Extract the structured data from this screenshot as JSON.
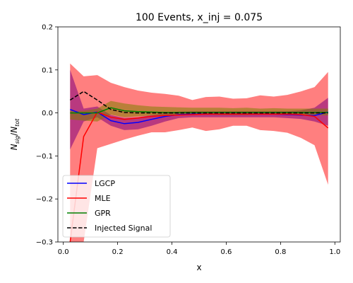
{
  "chart_data": {
    "type": "line",
    "title": "100 Events, x_inj = 0.075",
    "xlabel": "x",
    "ylabel_main": "N",
    "ylabel_num_sub": "sig",
    "ylabel_den_sub": "tot",
    "xlim": [
      -0.02,
      1.02
    ],
    "ylim": [
      -0.3,
      0.2
    ],
    "xticks": [
      0.0,
      0.2,
      0.4,
      0.6,
      0.8,
      1.0
    ],
    "xtick_labels": [
      "0.0",
      "0.2",
      "0.4",
      "0.6",
      "0.8",
      "1.0"
    ],
    "yticks": [
      -0.3,
      -0.2,
      -0.1,
      0.0,
      0.1,
      0.2
    ],
    "ytick_labels": [
      "−0.3",
      "−0.2",
      "−0.1",
      "0.0",
      "0.1",
      "0.2"
    ],
    "grid": false,
    "legend_position": "lower-left",
    "x": [
      0.025,
      0.075,
      0.125,
      0.175,
      0.225,
      0.275,
      0.325,
      0.375,
      0.425,
      0.475,
      0.525,
      0.575,
      0.625,
      0.675,
      0.725,
      0.775,
      0.825,
      0.875,
      0.925,
      0.975
    ],
    "series": [
      {
        "name": "LGCP",
        "color": "#0000ff",
        "style": "solid",
        "band_color": "#800080",
        "values": [
          0.008,
          -0.004,
          0.002,
          -0.018,
          -0.025,
          -0.022,
          -0.015,
          -0.008,
          -0.004,
          -0.003,
          -0.003,
          -0.003,
          -0.003,
          -0.003,
          -0.003,
          -0.003,
          -0.004,
          -0.005,
          -0.006,
          0.002
        ],
        "lower": [
          -0.085,
          -0.02,
          -0.01,
          -0.03,
          -0.04,
          -0.038,
          -0.03,
          -0.02,
          -0.012,
          -0.01,
          -0.01,
          -0.01,
          -0.01,
          -0.01,
          -0.01,
          -0.01,
          -0.012,
          -0.014,
          -0.02,
          -0.03
        ],
        "upper": [
          0.1,
          0.01,
          0.015,
          -0.005,
          -0.012,
          -0.01,
          -0.005,
          0.0,
          0.003,
          0.004,
          0.004,
          0.004,
          0.004,
          0.004,
          0.004,
          0.004,
          0.004,
          0.006,
          0.012,
          0.035
        ]
      },
      {
        "name": "MLE",
        "color": "#ff0000",
        "style": "solid",
        "band_color": "#ff0000",
        "values": [
          -0.3,
          -0.055,
          0.002,
          -0.01,
          -0.015,
          -0.012,
          -0.008,
          -0.006,
          -0.005,
          -0.004,
          -0.003,
          -0.003,
          -0.003,
          -0.003,
          -0.003,
          -0.003,
          -0.003,
          -0.004,
          -0.008,
          -0.035
        ],
        "lower": [
          -0.3,
          -0.3,
          -0.082,
          -0.072,
          -0.062,
          -0.053,
          -0.045,
          -0.045,
          -0.04,
          -0.034,
          -0.042,
          -0.038,
          -0.03,
          -0.03,
          -0.04,
          -0.042,
          -0.046,
          -0.058,
          -0.075,
          -0.167
        ],
        "upper": [
          0.115,
          0.085,
          0.088,
          0.07,
          0.06,
          0.052,
          0.047,
          0.044,
          0.04,
          0.03,
          0.037,
          0.038,
          0.033,
          0.034,
          0.041,
          0.038,
          0.042,
          0.05,
          0.06,
          0.095
        ]
      },
      {
        "name": "GPR",
        "color": "#008000",
        "style": "solid",
        "band_color": "#808000",
        "values": [
          0.0,
          0.0,
          0.0,
          0.012,
          0.005,
          0.003,
          0.002,
          0.001,
          0.001,
          0.001,
          0.001,
          0.001,
          0.001,
          0.001,
          0.001,
          0.001,
          0.001,
          0.001,
          0.001,
          0.001
        ],
        "lower": [
          -0.015,
          -0.018,
          -0.02,
          -0.004,
          -0.01,
          -0.008,
          -0.006,
          -0.005,
          -0.004,
          -0.004,
          -0.004,
          -0.005,
          -0.005,
          -0.005,
          -0.004,
          -0.004,
          -0.005,
          -0.005,
          -0.005,
          -0.006
        ],
        "upper": [
          0.005,
          0.005,
          0.01,
          0.028,
          0.022,
          0.018,
          0.015,
          0.014,
          0.013,
          0.012,
          0.012,
          0.012,
          0.011,
          0.012,
          0.01,
          0.011,
          0.01,
          0.01,
          0.01,
          0.01
        ]
      },
      {
        "name": "Injected Signal",
        "color": "#000000",
        "style": "dashed",
        "values": [
          0.03,
          0.05,
          0.03,
          0.008,
          0.001,
          0.0,
          0.0,
          0.0,
          0.0,
          0.0,
          0.0,
          0.0,
          0.0,
          0.0,
          0.0,
          0.0,
          0.0,
          0.0,
          0.0,
          0.0
        ]
      }
    ]
  }
}
